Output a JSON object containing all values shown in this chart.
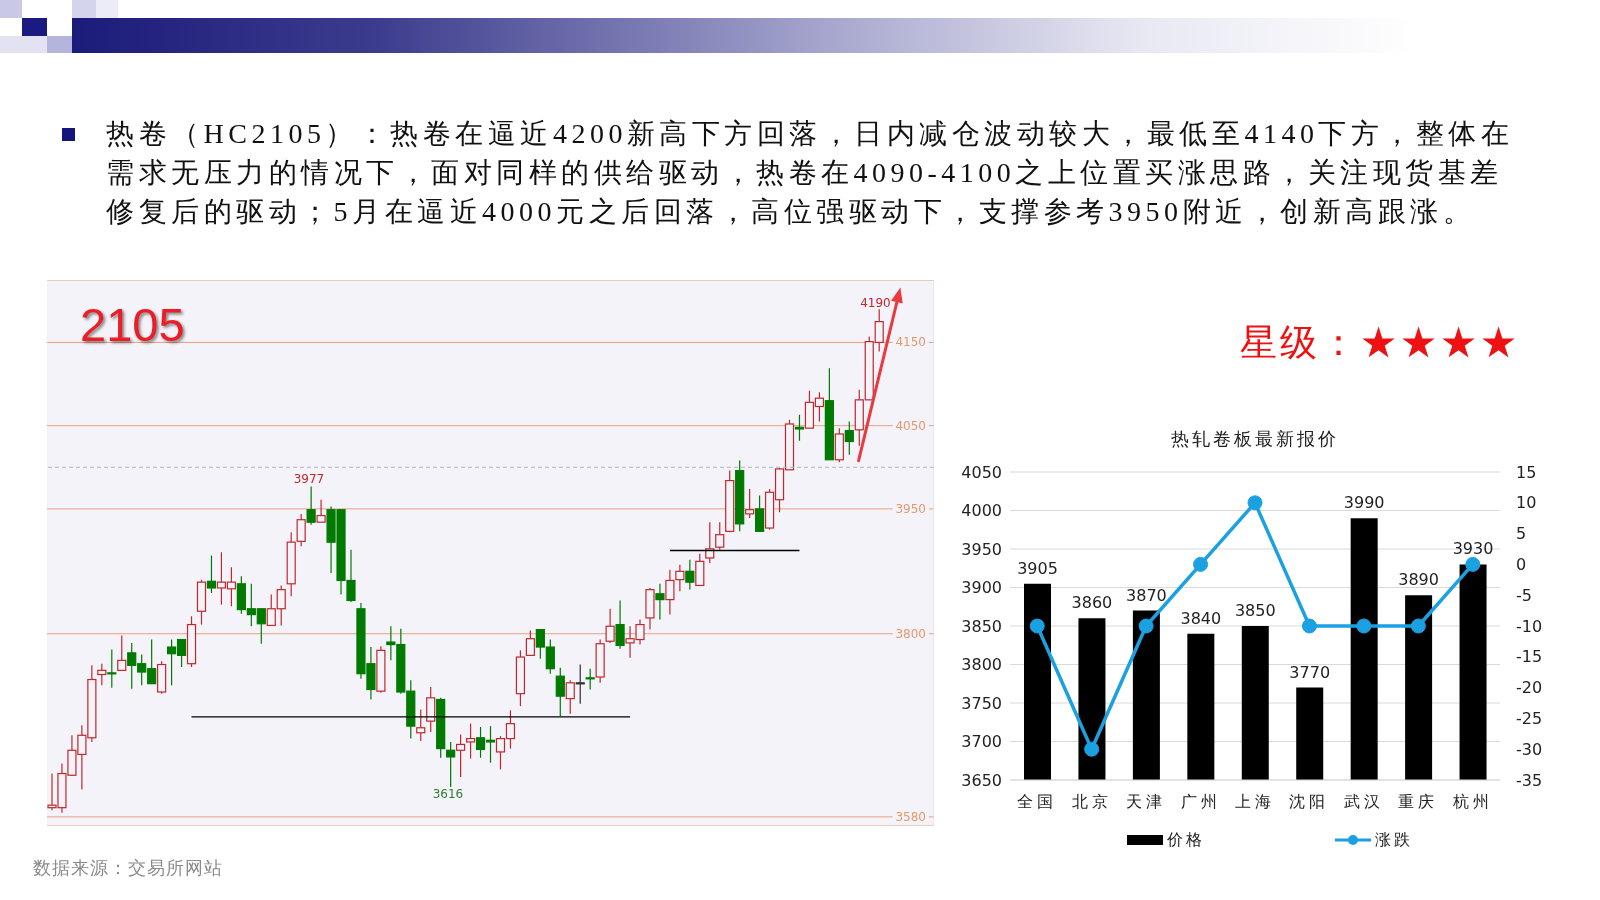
{
  "chart_data": [
    {
      "type": "candlestick",
      "title": "2105",
      "categories": [
        null,
        null,
        null,
        null,
        null,
        null,
        null,
        null,
        null,
        null,
        null,
        null,
        null,
        null,
        null,
        null,
        null,
        null,
        null,
        null,
        null,
        null,
        null,
        null,
        null,
        null,
        null,
        null,
        null,
        null,
        null,
        null,
        null,
        null,
        null,
        null,
        null,
        null,
        null,
        null,
        null,
        null,
        null,
        null,
        null,
        null,
        null,
        null,
        null,
        null,
        null,
        null,
        null,
        null,
        null,
        null,
        null,
        null,
        null,
        null,
        null,
        null,
        null,
        null,
        null,
        null,
        null,
        null,
        null,
        null,
        null,
        null,
        null,
        null,
        null,
        null,
        null,
        null,
        null,
        null,
        null,
        null,
        null,
        null,
        null,
        null,
        null,
        null,
        null
      ],
      "ohlc": [
        [
          3591,
          3632,
          3588,
          3594
        ],
        [
          3591,
          3644,
          3585,
          3632
        ],
        [
          3630,
          3678,
          3629,
          3660
        ],
        [
          3655,
          3690,
          3613,
          3678
        ],
        [
          3675,
          3762,
          3670,
          3745
        ],
        [
          3751,
          3764,
          3738,
          3756
        ],
        [
          3753,
          3781,
          3735,
          3752
        ],
        [
          3756,
          3798,
          3756,
          3768
        ],
        [
          3777,
          3789,
          3734,
          3762
        ],
        [
          3764,
          3775,
          3738,
          3754
        ],
        [
          3758,
          3793,
          3740,
          3740
        ],
        [
          3730,
          3767,
          3728,
          3763
        ],
        [
          3784,
          3793,
          3738,
          3776
        ],
        [
          3793,
          3793,
          3760,
          3774
        ],
        [
          3764,
          3821,
          3760,
          3811
        ],
        [
          3827,
          3865,
          3811,
          3862
        ],
        [
          3863,
          3894,
          3849,
          3855
        ],
        [
          3855,
          3898,
          3835,
          3862
        ],
        [
          3854,
          3880,
          3833,
          3862
        ],
        [
          3860,
          3869,
          3824,
          3829
        ],
        [
          3830,
          3860,
          3809,
          3823
        ],
        [
          3830,
          3830,
          3788,
          3812
        ],
        [
          3810,
          3847,
          3810,
          3830
        ],
        [
          3830,
          3858,
          3810,
          3853
        ],
        [
          3860,
          3922,
          3845,
          3910
        ],
        [
          3911,
          3944,
          3905,
          3937
        ],
        [
          3949,
          3977,
          3931,
          3934
        ],
        [
          3934,
          3961,
          3934,
          3942
        ],
        [
          3949,
          3953,
          3873,
          3910
        ],
        [
          3949,
          3949,
          3847,
          3864
        ],
        [
          3864,
          3901,
          3838,
          3840
        ],
        [
          3830,
          3837,
          3746,
          3752
        ],
        [
          3764,
          3784,
          3721,
          3733
        ],
        [
          3731,
          3785,
          3729,
          3780
        ],
        [
          3790,
          3809,
          3768,
          3787
        ],
        [
          3787,
          3806,
          3728,
          3730
        ],
        [
          3731,
          3744,
          3674,
          3689
        ],
        [
          3681,
          3709,
          3671,
          3687
        ],
        [
          3695,
          3736,
          3682,
          3723
        ],
        [
          3721,
          3723,
          3651,
          3662
        ],
        [
          3660,
          3670,
          3616,
          3652
        ],
        [
          3660,
          3679,
          3628,
          3667
        ],
        [
          3670,
          3692,
          3650,
          3674
        ],
        [
          3675,
          3688,
          3651,
          3661
        ],
        [
          3672,
          3689,
          3645,
          3670
        ],
        [
          3658,
          3677,
          3637,
          3674
        ],
        [
          3674,
          3708,
          3662,
          3692
        ],
        [
          3728,
          3780,
          3713,
          3772
        ],
        [
          3774,
          3804,
          3774,
          3794
        ],
        [
          3805,
          3805,
          3770,
          3784
        ],
        [
          3784,
          3793,
          3752,
          3758
        ],
        [
          3749,
          3759,
          3701,
          3725
        ],
        [
          3722,
          3744,
          3704,
          3741
        ],
        [
          3741,
          3763,
          3716,
          3741
        ],
        [
          3747,
          3758,
          3733,
          3746
        ],
        [
          3748,
          3793,
          3741,
          3788
        ],
        [
          3791,
          3830,
          3789,
          3809
        ],
        [
          3811,
          3840,
          3782,
          3786
        ],
        [
          3789,
          3809,
          3771,
          3794
        ],
        [
          3793,
          3817,
          3787,
          3811
        ],
        [
          3819,
          3855,
          3805,
          3853
        ],
        [
          3848,
          3860,
          3817,
          3841
        ],
        [
          3841,
          3877,
          3823,
          3864
        ],
        [
          3865,
          3883,
          3851,
          3875
        ],
        [
          3875,
          3889,
          3853,
          3862
        ],
        [
          3858,
          3896,
          3858,
          3887
        ],
        [
          3891,
          3934,
          3885,
          3902
        ],
        [
          3904,
          3934,
          3901,
          3919
        ],
        [
          3923,
          3996,
          3922,
          3984
        ],
        [
          3996,
          4008,
          3923,
          3932
        ],
        [
          3944,
          3974,
          3939,
          3949
        ],
        [
          3950,
          3966,
          3923,
          3923
        ],
        [
          3927,
          3974,
          3925,
          3970
        ],
        [
          3961,
          3999,
          3946,
          3998
        ],
        [
          3997,
          4057,
          3997,
          4052
        ],
        [
          4048,
          4063,
          4032,
          4046
        ],
        [
          4047,
          4092,
          4047,
          4078
        ],
        [
          4073,
          4090,
          4055,
          4083
        ],
        [
          4080,
          4119,
          4009,
          4009
        ],
        [
          4009,
          4047,
          4006,
          4040
        ],
        [
          4044,
          4055,
          4015,
          4031
        ],
        [
          4045,
          4093,
          4026,
          4081
        ],
        [
          4081,
          4157,
          4081,
          4151
        ],
        [
          4150,
          4190,
          4139,
          4175
        ],
        null,
        null,
        null,
        null,
        null
      ],
      "colors": [
        "#c0282d",
        "#c0282d",
        "#c0282d",
        "#c0282d",
        "#c0282d",
        "#c0282d",
        "#007a00",
        "#c0282d",
        "#007a00",
        "#007a00",
        "#007a00",
        "#c0282d",
        "#007a00",
        "#007a00",
        "#c0282d",
        "#c0282d",
        "#007a00",
        "#c0282d",
        "#c0282d",
        "#007a00",
        "#007a00",
        "#007a00",
        "#c0282d",
        "#c0282d",
        "#c0282d",
        "#c0282d",
        "#007a00",
        "#c0282d",
        "#007a00",
        "#007a00",
        "#007a00",
        "#007a00",
        "#007a00",
        "#c0282d",
        "#007a00",
        "#007a00",
        "#007a00",
        "#c0282d",
        "#c0282d",
        "#007a00",
        "#007a00",
        "#c0282d",
        "#c0282d",
        "#007a00",
        "#007a00",
        "#c0282d",
        "#c0282d",
        "#c0282d",
        "#c0282d",
        "#007a00",
        "#007a00",
        "#007a00",
        "#c0282d",
        "#303030",
        "#007a00",
        "#c0282d",
        "#c0282d",
        "#007a00",
        "#c0282d",
        "#c0282d",
        "#c0282d",
        "#007a00",
        "#c0282d",
        "#c0282d",
        "#007a00",
        "#c0282d",
        "#c0282d",
        "#c0282d",
        "#c0282d",
        "#007a00",
        "#c0282d",
        "#007a00",
        "#c0282d",
        "#c0282d",
        "#c0282d",
        "#007a00",
        "#c0282d",
        "#c0282d",
        "#007a00",
        "#c0282d",
        "#007a00",
        "#c0282d",
        "#c0282d",
        "#c0282d",
        null,
        null,
        null,
        null,
        null
      ],
      "series": [
        {
          "type": "line",
          "color": "#000000",
          "values": [
            null,
            null,
            null,
            null,
            null,
            null,
            null,
            null,
            null,
            null,
            null,
            null,
            null,
            null,
            3700,
            3700,
            3700,
            3700,
            3700,
            3700,
            3700,
            3700,
            3700,
            3700,
            3700,
            3700,
            3700,
            3700,
            3700,
            3700,
            3700,
            3700,
            3700,
            3700,
            3700,
            3700,
            3700,
            3700,
            3700,
            3700,
            3700,
            3700,
            3700,
            3700,
            3700,
            3700,
            3700,
            3700,
            3700,
            3700,
            3700,
            3700,
            3700,
            3700,
            3700,
            3700,
            3700,
            3700,
            3700,
            null,
            null,
            null,
            null,
            null,
            null,
            null,
            null,
            null,
            null,
            null,
            null,
            null,
            null,
            null,
            null,
            null,
            null,
            null,
            null,
            null,
            null,
            null,
            null,
            null,
            null,
            null,
            null,
            null,
            null
          ]
        },
        {
          "type": "line",
          "color": "#000000",
          "values": [
            null,
            null,
            null,
            null,
            null,
            null,
            null,
            null,
            null,
            null,
            null,
            null,
            null,
            null,
            null,
            null,
            null,
            null,
            null,
            null,
            null,
            null,
            null,
            null,
            null,
            null,
            null,
            null,
            null,
            null,
            null,
            null,
            null,
            null,
            null,
            null,
            null,
            null,
            null,
            null,
            null,
            null,
            null,
            null,
            null,
            null,
            null,
            null,
            null,
            null,
            null,
            null,
            null,
            null,
            null,
            null,
            null,
            null,
            null,
            null,
            null,
            null,
            3900,
            3900,
            3900,
            3900,
            3900,
            3900,
            3900,
            3900,
            3900,
            3900,
            3900,
            3900,
            3900,
            3900,
            null,
            null,
            null,
            null,
            null,
            null,
            null,
            null,
            null,
            null,
            null,
            null,
            null
          ]
        }
      ],
      "ylim": [
        3569,
        4225
      ],
      "yticks": [
        3580,
        3800,
        3950,
        4050,
        4150
      ],
      "grid": "y",
      "tick_labels": "y",
      "ref_lines": [
        {
          "axis": "y",
          "value": 4000,
          "color": "#b4b4bc",
          "line_style": "dashed"
        }
      ],
      "annotations": [
        "热卷（HC2105）：热卷在逼近4200新高下方回落，日内减仓波动较大，最低至4140下方，整体在需求无压力的情况下，面对同样的供给驱动，热卷在4090-4100之上位置买涨思路，关注现货基差修复后的驱动；5月在逼近4000元之后回落，高位强驱动下，支撑参考3950附近，创新高跟涨。",
        "数据来源：交易所网站",
        "4190",
        "3977",
        "3616"
      ]
    },
    {
      "type": "bar",
      "title": "热轧卷板最新报价",
      "categories": [
        "全国",
        "北京",
        "天津",
        "广州",
        "上海",
        "沈阳",
        "武汉",
        "重庆",
        "杭州"
      ],
      "series": [
        {
          "name": "价格",
          "type": "bar",
          "color": "#000000",
          "values": [
            3905,
            3860,
            3870,
            3840,
            3850,
            3770,
            3990,
            3890,
            3930
          ],
          "value_labels": [
            "3905",
            "3860",
            "3870",
            "3840",
            "3850",
            "3770",
            "3990",
            "3890",
            "3930"
          ]
        },
        {
          "name": "涨跌",
          "type": "line",
          "axis": "y2",
          "color": "#1ba1e2",
          "values": [
            -10,
            -30,
            -10,
            0,
            10,
            -10,
            -10,
            -10,
            0
          ]
        }
      ],
      "ylim": [
        3650,
        4050
      ],
      "yticks": [
        3650,
        3700,
        3750,
        3800,
        3850,
        3900,
        3950,
        4000,
        4050
      ],
      "y2lim": [
        -35,
        15
      ],
      "y2ticks": [
        -35,
        -30,
        -25,
        -20,
        -15,
        -10,
        -5,
        0,
        5,
        10,
        15
      ],
      "grid": "y",
      "legend": "bottom",
      "marker": "circle",
      "annotations": [
        "星级：★★★★"
      ]
    }
  ]
}
